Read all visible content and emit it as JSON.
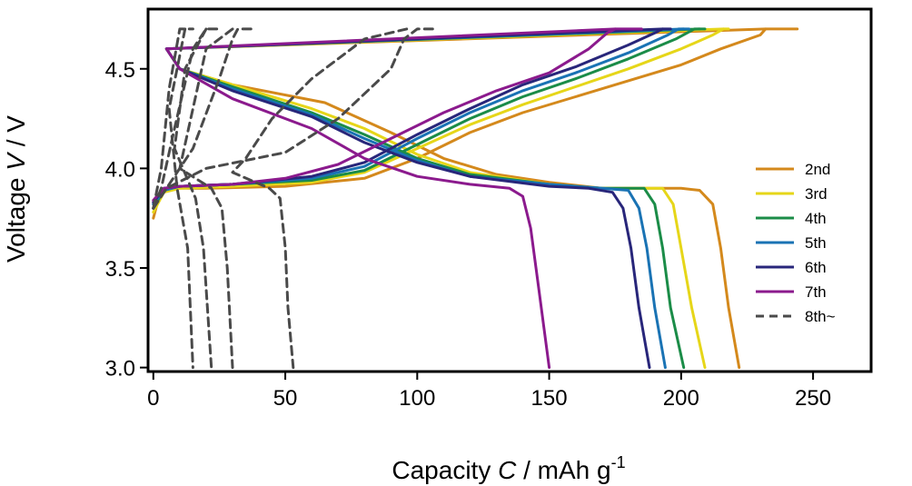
{
  "chart_data": {
    "type": "line",
    "xlabel": {
      "prefix": "Capacity ",
      "italic": "C",
      "suffix": " / mAh g",
      "superscript": "-1"
    },
    "ylabel": {
      "prefix": "Voltage ",
      "italic": "V",
      "suffix": " / V"
    },
    "xlim": [
      -2,
      272
    ],
    "ylim": [
      2.98,
      4.8
    ],
    "xticks": [
      0,
      50,
      100,
      150,
      200,
      250
    ],
    "yticks": [
      3.0,
      3.5,
      4.0,
      4.5
    ],
    "ytick_labels": [
      "3.0",
      "3.5",
      "4.0",
      "4.5"
    ],
    "grid": false,
    "legend_position": "right",
    "series": [
      {
        "name": "2nd",
        "color": "#d4891c",
        "dash": false,
        "charge": [
          [
            0,
            3.75
          ],
          [
            2,
            3.85
          ],
          [
            5,
            3.9
          ],
          [
            20,
            3.9
          ],
          [
            50,
            3.91
          ],
          [
            80,
            3.95
          ],
          [
            100,
            4.05
          ],
          [
            120,
            4.18
          ],
          [
            140,
            4.28
          ],
          [
            160,
            4.36
          ],
          [
            180,
            4.44
          ],
          [
            200,
            4.52
          ],
          [
            215,
            4.6
          ],
          [
            230,
            4.67
          ],
          [
            232,
            4.7
          ],
          [
            244,
            4.7
          ]
        ],
        "discharge": [
          [
            232,
            4.7
          ],
          [
            5,
            4.6
          ],
          [
            10,
            4.5
          ],
          [
            30,
            4.42
          ],
          [
            65,
            4.33
          ],
          [
            90,
            4.18
          ],
          [
            110,
            4.05
          ],
          [
            130,
            3.97
          ],
          [
            150,
            3.93
          ],
          [
            170,
            3.9
          ],
          [
            200,
            3.9
          ],
          [
            207,
            3.89
          ],
          [
            212,
            3.82
          ],
          [
            215,
            3.6
          ],
          [
            218,
            3.3
          ],
          [
            222,
            3.0
          ]
        ]
      },
      {
        "name": "3rd",
        "color": "#e6d619",
        "dash": false,
        "charge": [
          [
            0,
            3.78
          ],
          [
            4,
            3.88
          ],
          [
            10,
            3.9
          ],
          [
            30,
            3.91
          ],
          [
            60,
            3.93
          ],
          [
            80,
            3.98
          ],
          [
            100,
            4.1
          ],
          [
            120,
            4.22
          ],
          [
            140,
            4.32
          ],
          [
            160,
            4.41
          ],
          [
            180,
            4.5
          ],
          [
            200,
            4.6
          ],
          [
            212,
            4.67
          ],
          [
            216,
            4.7
          ],
          [
            218,
            4.7
          ]
        ],
        "discharge": [
          [
            216,
            4.7
          ],
          [
            5,
            4.6
          ],
          [
            10,
            4.5
          ],
          [
            30,
            4.42
          ],
          [
            60,
            4.3
          ],
          [
            80,
            4.2
          ],
          [
            100,
            4.07
          ],
          [
            120,
            3.98
          ],
          [
            150,
            3.92
          ],
          [
            170,
            3.9
          ],
          [
            193,
            3.9
          ],
          [
            197,
            3.82
          ],
          [
            200,
            3.6
          ],
          [
            204,
            3.3
          ],
          [
            209,
            3.0
          ]
        ]
      },
      {
        "name": "4th",
        "color": "#1b8c48",
        "dash": false,
        "charge": [
          [
            0,
            3.8
          ],
          [
            4,
            3.89
          ],
          [
            10,
            3.91
          ],
          [
            30,
            3.92
          ],
          [
            60,
            3.94
          ],
          [
            80,
            3.99
          ],
          [
            100,
            4.12
          ],
          [
            120,
            4.25
          ],
          [
            140,
            4.36
          ],
          [
            160,
            4.45
          ],
          [
            180,
            4.55
          ],
          [
            198,
            4.65
          ],
          [
            205,
            4.7
          ],
          [
            209,
            4.7
          ]
        ],
        "discharge": [
          [
            207,
            4.7
          ],
          [
            5,
            4.6
          ],
          [
            10,
            4.5
          ],
          [
            30,
            4.41
          ],
          [
            60,
            4.28
          ],
          [
            80,
            4.17
          ],
          [
            100,
            4.05
          ],
          [
            120,
            3.97
          ],
          [
            150,
            3.92
          ],
          [
            170,
            3.9
          ],
          [
            186,
            3.9
          ],
          [
            190,
            3.82
          ],
          [
            193,
            3.6
          ],
          [
            196,
            3.3
          ],
          [
            201,
            3.0
          ]
        ]
      },
      {
        "name": "5th",
        "color": "#1a73b4",
        "dash": false,
        "charge": [
          [
            0,
            3.82
          ],
          [
            4,
            3.89
          ],
          [
            10,
            3.91
          ],
          [
            30,
            3.92
          ],
          [
            60,
            3.95
          ],
          [
            80,
            4.01
          ],
          [
            100,
            4.15
          ],
          [
            120,
            4.28
          ],
          [
            140,
            4.39
          ],
          [
            160,
            4.48
          ],
          [
            180,
            4.58
          ],
          [
            195,
            4.67
          ],
          [
            199,
            4.7
          ],
          [
            203,
            4.7
          ]
        ],
        "discharge": [
          [
            201,
            4.7
          ],
          [
            5,
            4.6
          ],
          [
            10,
            4.5
          ],
          [
            30,
            4.4
          ],
          [
            60,
            4.27
          ],
          [
            80,
            4.15
          ],
          [
            100,
            4.04
          ],
          [
            120,
            3.96
          ],
          [
            150,
            3.92
          ],
          [
            170,
            3.9
          ],
          [
            180,
            3.89
          ],
          [
            184,
            3.8
          ],
          [
            187,
            3.6
          ],
          [
            190,
            3.3
          ],
          [
            194,
            3.0
          ]
        ]
      },
      {
        "name": "6th",
        "color": "#28267a",
        "dash": false,
        "charge": [
          [
            0,
            3.83
          ],
          [
            4,
            3.9
          ],
          [
            10,
            3.91
          ],
          [
            30,
            3.92
          ],
          [
            60,
            3.96
          ],
          [
            80,
            4.03
          ],
          [
            100,
            4.17
          ],
          [
            120,
            4.3
          ],
          [
            140,
            4.42
          ],
          [
            160,
            4.51
          ],
          [
            180,
            4.62
          ],
          [
            190,
            4.68
          ],
          [
            193,
            4.7
          ],
          [
            196,
            4.7
          ]
        ],
        "discharge": [
          [
            193,
            4.7
          ],
          [
            5,
            4.6
          ],
          [
            10,
            4.5
          ],
          [
            30,
            4.39
          ],
          [
            60,
            4.26
          ],
          [
            80,
            4.13
          ],
          [
            100,
            4.03
          ],
          [
            120,
            3.96
          ],
          [
            150,
            3.91
          ],
          [
            165,
            3.9
          ],
          [
            174,
            3.88
          ],
          [
            178,
            3.8
          ],
          [
            181,
            3.6
          ],
          [
            184,
            3.3
          ],
          [
            188,
            3.0
          ]
        ]
      },
      {
        "name": "7th",
        "color": "#8b1a8d",
        "dash": false,
        "charge": [
          [
            0,
            3.84
          ],
          [
            4,
            3.9
          ],
          [
            10,
            3.91
          ],
          [
            30,
            3.92
          ],
          [
            50,
            3.95
          ],
          [
            70,
            4.02
          ],
          [
            90,
            4.15
          ],
          [
            110,
            4.28
          ],
          [
            130,
            4.39
          ],
          [
            150,
            4.48
          ],
          [
            165,
            4.6
          ],
          [
            172,
            4.68
          ],
          [
            175,
            4.7
          ],
          [
            185,
            4.7
          ]
        ],
        "discharge": [
          [
            175,
            4.7
          ],
          [
            5,
            4.6
          ],
          [
            10,
            4.5
          ],
          [
            30,
            4.35
          ],
          [
            60,
            4.2
          ],
          [
            80,
            4.05
          ],
          [
            100,
            3.96
          ],
          [
            120,
            3.92
          ],
          [
            135,
            3.9
          ],
          [
            140,
            3.86
          ],
          [
            143,
            3.7
          ],
          [
            146,
            3.4
          ],
          [
            148,
            3.2
          ],
          [
            150,
            3.0
          ]
        ]
      },
      {
        "name": "8th~",
        "color": "#4a4a4a",
        "dash": true,
        "curves": [
          [
            [
              0,
              3.8
            ],
            [
              5,
              3.9
            ],
            [
              20,
              4.0
            ],
            [
              50,
              4.08
            ],
            [
              70,
              4.25
            ],
            [
              90,
              4.5
            ],
            [
              95,
              4.65
            ],
            [
              100,
              4.7
            ],
            [
              107,
              4.7
            ]
          ],
          [
            [
              96,
              4.7
            ],
            [
              80,
              4.65
            ],
            [
              60,
              4.45
            ],
            [
              45,
              4.25
            ],
            [
              35,
              4.05
            ],
            [
              30,
              3.98
            ],
            [
              44,
              3.9
            ],
            [
              48,
              3.85
            ],
            [
              50,
              3.6
            ],
            [
              51,
              3.3
            ],
            [
              53,
              3.0
            ]
          ],
          [
            [
              0,
              3.8
            ],
            [
              5,
              3.9
            ],
            [
              15,
              4.1
            ],
            [
              25,
              4.45
            ],
            [
              30,
              4.65
            ],
            [
              32,
              4.7
            ],
            [
              38,
              4.7
            ]
          ],
          [
            [
              30,
              4.7
            ],
            [
              20,
              4.6
            ],
            [
              15,
              4.3
            ],
            [
              10,
              4.0
            ],
            [
              22,
              3.9
            ],
            [
              26,
              3.8
            ],
            [
              28,
              3.5
            ],
            [
              30,
              3.0
            ]
          ],
          [
            [
              0,
              3.8
            ],
            [
              3,
              3.9
            ],
            [
              8,
              4.2
            ],
            [
              15,
              4.6
            ],
            [
              20,
              4.7
            ],
            [
              25,
              4.7
            ]
          ],
          [
            [
              20,
              4.7
            ],
            [
              12,
              4.5
            ],
            [
              8,
              4.1
            ],
            [
              16,
              3.85
            ],
            [
              19,
              3.6
            ],
            [
              22,
              3.0
            ]
          ],
          [
            [
              0,
              3.8
            ],
            [
              3,
              4.0
            ],
            [
              6,
              4.4
            ],
            [
              10,
              4.7
            ],
            [
              15,
              4.7
            ]
          ],
          [
            [
              12,
              4.7
            ],
            [
              6,
              4.3
            ],
            [
              9,
              3.9
            ],
            [
              13,
              3.6
            ],
            [
              15,
              3.0
            ]
          ]
        ]
      }
    ]
  }
}
